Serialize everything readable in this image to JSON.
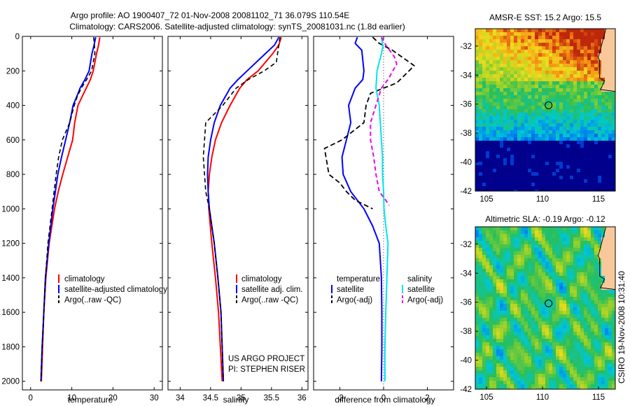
{
  "figure": {
    "title_line1": "Argo profile: AO 1900407_72 01-Nov-2008 20081102_71 36.079S 110.54E",
    "title_line2": "Climatology: CARS2006. Satellite-adjusted climatology: synTS_20081031.nc (1.8d earlier)",
    "credit": "CSIRO 19-Nov-2008 10:31:40",
    "project_line1": "US ARGO PROJECT",
    "project_line2": "PI: STEPHEN RISER"
  },
  "colors": {
    "climatology": "#ff0000",
    "satellite": "#0000ff",
    "argo": "#000000",
    "sat_salinity": "#00e5ee",
    "argo_salinity": "#ee00ee",
    "land": "#f9c89a",
    "deep": "#000090"
  },
  "chart_data": [
    {
      "type": "line",
      "xlabel": "temperature",
      "ylabel": "",
      "xlim": [
        -2,
        32
      ],
      "ylim": [
        0,
        2050
      ],
      "xticks": [
        0,
        10,
        20,
        30
      ],
      "yticks": [
        0,
        200,
        400,
        600,
        800,
        1000,
        1200,
        1400,
        1600,
        1800,
        2000
      ],
      "legend": {
        "position": "center-right",
        "entries": [
          "climatology",
          "satellite-adjusted climatology",
          "Argo(..raw -QC)"
        ]
      },
      "series": [
        {
          "name": "climatology",
          "values": [
            [
              16.8,
              5
            ],
            [
              16.5,
              50
            ],
            [
              16.0,
              100
            ],
            [
              15.2,
              200
            ],
            [
              14.5,
              250
            ],
            [
              13.5,
              300
            ],
            [
              12.5,
              350
            ],
            [
              11.5,
              400
            ],
            [
              10.7,
              500
            ],
            [
              10.2,
              600
            ],
            [
              9.0,
              700
            ],
            [
              7.8,
              800
            ],
            [
              6.7,
              900
            ],
            [
              5.8,
              1000
            ],
            [
              4.5,
              1200
            ],
            [
              3.7,
              1400
            ],
            [
              3.2,
              1600
            ],
            [
              2.9,
              1800
            ],
            [
              2.6,
              2000
            ]
          ]
        },
        {
          "name": "satellite-adjusted climatology",
          "values": [
            [
              15.8,
              5
            ],
            [
              15.4,
              50
            ],
            [
              14.9,
              100
            ],
            [
              14.2,
              200
            ],
            [
              13.2,
              250
            ],
            [
              12.0,
              300
            ],
            [
              11.2,
              350
            ],
            [
              10.3,
              400
            ],
            [
              9.5,
              500
            ],
            [
              8.5,
              600
            ],
            [
              7.5,
              700
            ],
            [
              6.6,
              800
            ],
            [
              6.0,
              900
            ],
            [
              5.4,
              1000
            ],
            [
              4.4,
              1200
            ],
            [
              3.6,
              1400
            ],
            [
              3.2,
              1600
            ],
            [
              2.8,
              1800
            ],
            [
              2.5,
              2000
            ]
          ]
        },
        {
          "name": "Argo(..raw -QC)",
          "values": [
            [
              15.3,
              5
            ],
            [
              15.5,
              50
            ],
            [
              15.6,
              100
            ],
            [
              14.8,
              200
            ],
            [
              13.6,
              250
            ],
            [
              12.3,
              300
            ],
            [
              11.3,
              350
            ],
            [
              10.6,
              400
            ],
            [
              9.5,
              500
            ],
            [
              7.7,
              600
            ],
            [
              6.8,
              700
            ],
            [
              6.2,
              800
            ],
            [
              5.7,
              900
            ],
            [
              5.2,
              1000
            ],
            [
              4.2,
              1200
            ],
            [
              3.6,
              1400
            ],
            [
              3.2,
              1600
            ],
            [
              2.8,
              1800
            ],
            [
              2.5,
              2000
            ]
          ]
        }
      ]
    },
    {
      "type": "line",
      "xlabel": "salinity",
      "ylabel": "",
      "xlim": [
        33.8,
        36.1
      ],
      "ylim": [
        0,
        2050
      ],
      "xticks": [
        34,
        34.5,
        35,
        35.5,
        36
      ],
      "legend": {
        "position": "center-right",
        "entries": [
          "climatology",
          "satellite adj. clim.",
          "Argo(..raw -QC)"
        ]
      },
      "series": [
        {
          "name": "climatology",
          "values": [
            [
              35.66,
              5
            ],
            [
              35.62,
              50
            ],
            [
              35.52,
              100
            ],
            [
              35.28,
              200
            ],
            [
              35.1,
              250
            ],
            [
              34.98,
              300
            ],
            [
              34.82,
              400
            ],
            [
              34.68,
              500
            ],
            [
              34.58,
              600
            ],
            [
              34.52,
              700
            ],
            [
              34.48,
              800
            ],
            [
              34.46,
              900
            ],
            [
              34.47,
              1000
            ],
            [
              34.52,
              1200
            ],
            [
              34.58,
              1400
            ],
            [
              34.63,
              1600
            ],
            [
              34.66,
              1800
            ],
            [
              34.69,
              2000
            ]
          ]
        },
        {
          "name": "satellite adj. clim.",
          "values": [
            [
              35.62,
              5
            ],
            [
              35.55,
              50
            ],
            [
              35.4,
              100
            ],
            [
              35.1,
              200
            ],
            [
              34.95,
              250
            ],
            [
              34.82,
              300
            ],
            [
              34.66,
              400
            ],
            [
              34.56,
              500
            ],
            [
              34.5,
              600
            ],
            [
              34.46,
              700
            ],
            [
              34.45,
              800
            ],
            [
              34.46,
              900
            ],
            [
              34.48,
              1000
            ],
            [
              34.56,
              1200
            ],
            [
              34.62,
              1400
            ],
            [
              34.67,
              1600
            ],
            [
              34.69,
              1800
            ],
            [
              34.71,
              2000
            ]
          ]
        },
        {
          "name": "Argo(..raw -QC)",
          "values": [
            [
              35.64,
              5
            ],
            [
              35.6,
              100
            ],
            [
              35.58,
              150
            ],
            [
              35.38,
              200
            ],
            [
              35.12,
              250
            ],
            [
              34.92,
              300
            ],
            [
              34.7,
              400
            ],
            [
              34.42,
              500
            ],
            [
              34.4,
              600
            ],
            [
              34.38,
              700
            ],
            [
              34.4,
              800
            ],
            [
              34.42,
              900
            ],
            [
              34.48,
              1000
            ],
            [
              34.56,
              1200
            ],
            [
              34.62,
              1400
            ],
            [
              34.67,
              1600
            ],
            [
              34.69,
              1800
            ],
            [
              34.71,
              2000
            ]
          ]
        }
      ]
    },
    {
      "type": "line",
      "xlabel": "difference from climatology",
      "ylabel": "",
      "xlim": [
        -3.2,
        3.2
      ],
      "ylim": [
        0,
        2050
      ],
      "xticks": [
        -2,
        0,
        2
      ],
      "legend": {
        "position": "center",
        "entries": [
          "temperature",
          "satellite",
          "Argo(-adj)",
          "salinity",
          "satellite",
          "Argo(-adj)"
        ]
      },
      "series": [
        {
          "name": "temperature satellite",
          "values": [
            [
              -1.2,
              5
            ],
            [
              -1.3,
              40
            ],
            [
              -1.0,
              80
            ],
            [
              -0.9,
              200
            ],
            [
              -0.95,
              250
            ],
            [
              -1.3,
              300
            ],
            [
              -1.6,
              400
            ],
            [
              -1.5,
              500
            ],
            [
              -1.7,
              600
            ],
            [
              -1.9,
              700
            ],
            [
              -1.85,
              800
            ],
            [
              -1.5,
              900
            ],
            [
              -0.9,
              1000
            ],
            [
              -0.5,
              1100
            ],
            [
              -0.2,
              1200
            ],
            [
              -0.1,
              1400
            ],
            [
              -0.08,
              1600
            ],
            [
              -0.08,
              1800
            ],
            [
              -0.1,
              2000
            ]
          ]
        },
        {
          "name": "temperature Argo(-adj)",
          "values": [
            [
              -0.5,
              5
            ],
            [
              -0.2,
              40
            ],
            [
              0.4,
              80
            ],
            [
              1.4,
              170
            ],
            [
              0.6,
              270
            ],
            [
              -0.6,
              330
            ],
            [
              -0.8,
              400
            ],
            [
              -0.9,
              500
            ],
            [
              -1.9,
              600
            ],
            [
              -2.7,
              650
            ],
            [
              -2.5,
              800
            ],
            [
              -2.0,
              850
            ],
            [
              -1.7,
              900
            ],
            [
              -1.3,
              950
            ],
            [
              -0.5,
              1000
            ]
          ]
        },
        {
          "name": "salinity satellite",
          "values": [
            [
              -0.1,
              5
            ],
            [
              -0.04,
              60
            ],
            [
              -0.1,
              100
            ],
            [
              -0.3,
              200
            ],
            [
              -0.35,
              300
            ],
            [
              -0.2,
              400
            ],
            [
              -0.15,
              500
            ],
            [
              -0.1,
              600
            ],
            [
              -0.05,
              700
            ],
            [
              -0.05,
              800
            ],
            [
              0.0,
              900
            ],
            [
              0.02,
              1000
            ],
            [
              0.1,
              1100
            ],
            [
              0.2,
              1200
            ],
            [
              0.15,
              1400
            ],
            [
              0.1,
              1600
            ],
            [
              0.06,
              1800
            ],
            [
              0.06,
              2000
            ]
          ]
        },
        {
          "name": "salinity Argo(-adj)",
          "values": [
            [
              -0.1,
              5
            ],
            [
              0.1,
              50
            ],
            [
              0.5,
              120
            ],
            [
              0.6,
              160
            ],
            [
              0.2,
              250
            ],
            [
              -0.1,
              300
            ],
            [
              -0.35,
              400
            ],
            [
              -0.6,
              500
            ],
            [
              -0.6,
              600
            ],
            [
              -0.45,
              700
            ],
            [
              -0.35,
              800
            ],
            [
              -0.2,
              900
            ],
            [
              0.1,
              950
            ],
            [
              0.25,
              980
            ]
          ]
        }
      ]
    },
    {
      "type": "heatmap",
      "title": "AMSR-E SST: 15.2 Argo: 15.5",
      "xlim": [
        104,
        116.5
      ],
      "ylim": [
        -42,
        -30.8
      ],
      "xticks": [
        105,
        110,
        115
      ],
      "yticks": [
        -32,
        -34,
        -36,
        -38,
        -40,
        -42
      ],
      "marker": {
        "lon": 110.54,
        "lat": -36.08
      }
    },
    {
      "type": "heatmap",
      "title": "Altimetric SLA: -0.19 Argo: -0.12",
      "xlim": [
        104,
        116.5
      ],
      "ylim": [
        -42,
        -30.8
      ],
      "xticks": [
        105,
        110,
        115
      ],
      "yticks": [
        -32,
        -34,
        -36,
        -38,
        -40,
        -42
      ],
      "marker": {
        "lon": 110.54,
        "lat": -36.08
      }
    }
  ]
}
